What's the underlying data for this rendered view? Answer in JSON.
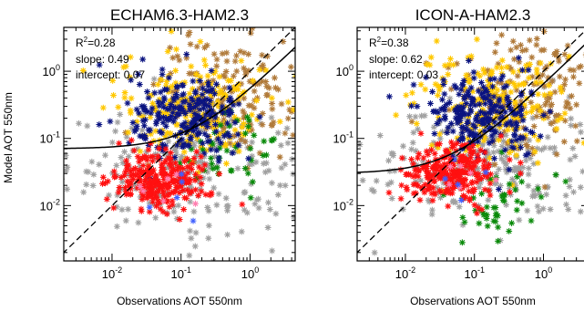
{
  "figure": {
    "ylabel": "Model AOT 550nm",
    "xlabel": "Observations AOT 550nm"
  },
  "colors": {
    "gold": "#ffc800",
    "tan": "#b07a3a",
    "navy": "#0a1380",
    "red": "#ff1010",
    "grey": "#a0a0a0",
    "green": "#0a8a0a",
    "pink": "#ff7fb0",
    "blue": "#4060ff",
    "line": "#000000"
  },
  "chart_data": [
    {
      "type": "scatter",
      "title": "ECHAM6.3-HAM2.3",
      "xlabel": "Observations AOT 550nm",
      "ylabel": "Model AOT 550nm",
      "x_scale": "log",
      "y_scale": "log",
      "xlim": [
        0.002,
        4.5
      ],
      "ylim": [
        0.0015,
        4.5
      ],
      "x_ticks": [
        "10-2",
        "10-1",
        "100"
      ],
      "y_ticks": [
        "10-2",
        "10-1",
        "100"
      ],
      "grid": false,
      "stats": {
        "r2": "R2=0.28",
        "slope": "slope: 0.49",
        "intercept": "intercept: 0.07"
      },
      "reference_line": "1:1",
      "fit": {
        "slope": 0.49,
        "intercept": 0.07
      },
      "clusters": [
        {
          "color": "grey",
          "n": 260,
          "x_center": 0.12,
          "y_center": 0.035,
          "x_spread": 0.85,
          "y_spread": 0.45
        },
        {
          "color": "tan",
          "n": 170,
          "x_center": 0.6,
          "y_center": 0.45,
          "x_spread": 0.55,
          "y_spread": 0.45
        },
        {
          "color": "gold",
          "n": 210,
          "x_center": 0.15,
          "y_center": 0.3,
          "x_spread": 0.55,
          "y_spread": 0.4
        },
        {
          "color": "green",
          "n": 45,
          "x_center": 0.6,
          "y_center": 0.07,
          "x_spread": 0.5,
          "y_spread": 0.35
        },
        {
          "color": "navy",
          "n": 230,
          "x_center": 0.12,
          "y_center": 0.2,
          "x_spread": 0.4,
          "y_spread": 0.3
        },
        {
          "color": "red",
          "n": 260,
          "x_center": 0.05,
          "y_center": 0.025,
          "x_spread": 0.35,
          "y_spread": 0.22
        },
        {
          "color": "pink",
          "n": 6,
          "x_center": 0.07,
          "y_center": 0.02,
          "x_spread": 0.3,
          "y_spread": 0.2
        },
        {
          "color": "blue",
          "n": 5,
          "x_center": 0.06,
          "y_center": 0.012,
          "x_spread": 0.3,
          "y_spread": 0.2
        }
      ]
    },
    {
      "type": "scatter",
      "title": "ICON-A-HAM2.3",
      "xlabel": "Observations AOT 550nm",
      "ylabel": "",
      "x_scale": "log",
      "y_scale": "log",
      "xlim": [
        0.002,
        4.5
      ],
      "ylim": [
        0.0015,
        4.5
      ],
      "x_ticks": [
        "10-2",
        "10-1",
        "100"
      ],
      "y_ticks": [
        "10-2",
        "10-1",
        "100"
      ],
      "grid": false,
      "stats": {
        "r2": "R2=0.38",
        "slope": "slope: 0.62",
        "intercept": "intercept: 0.03"
      },
      "reference_line": "1:1",
      "fit": {
        "slope": 0.62,
        "intercept": 0.03
      },
      "clusters": [
        {
          "color": "grey",
          "n": 260,
          "x_center": 0.12,
          "y_center": 0.045,
          "x_spread": 0.85,
          "y_spread": 0.45
        },
        {
          "color": "tan",
          "n": 170,
          "x_center": 0.6,
          "y_center": 0.5,
          "x_spread": 0.55,
          "y_spread": 0.45
        },
        {
          "color": "gold",
          "n": 210,
          "x_center": 0.15,
          "y_center": 0.3,
          "x_spread": 0.55,
          "y_spread": 0.4
        },
        {
          "color": "green",
          "n": 50,
          "x_center": 0.2,
          "y_center": 0.012,
          "x_spread": 0.35,
          "y_spread": 0.3
        },
        {
          "color": "navy",
          "n": 230,
          "x_center": 0.12,
          "y_center": 0.22,
          "x_spread": 0.4,
          "y_spread": 0.3
        },
        {
          "color": "red",
          "n": 260,
          "x_center": 0.05,
          "y_center": 0.03,
          "x_spread": 0.35,
          "y_spread": 0.22
        },
        {
          "color": "pink",
          "n": 6,
          "x_center": 0.07,
          "y_center": 0.03,
          "x_spread": 0.3,
          "y_spread": 0.2
        },
        {
          "color": "blue",
          "n": 5,
          "x_center": 0.06,
          "y_center": 0.02,
          "x_spread": 0.3,
          "y_spread": 0.2
        }
      ]
    }
  ]
}
